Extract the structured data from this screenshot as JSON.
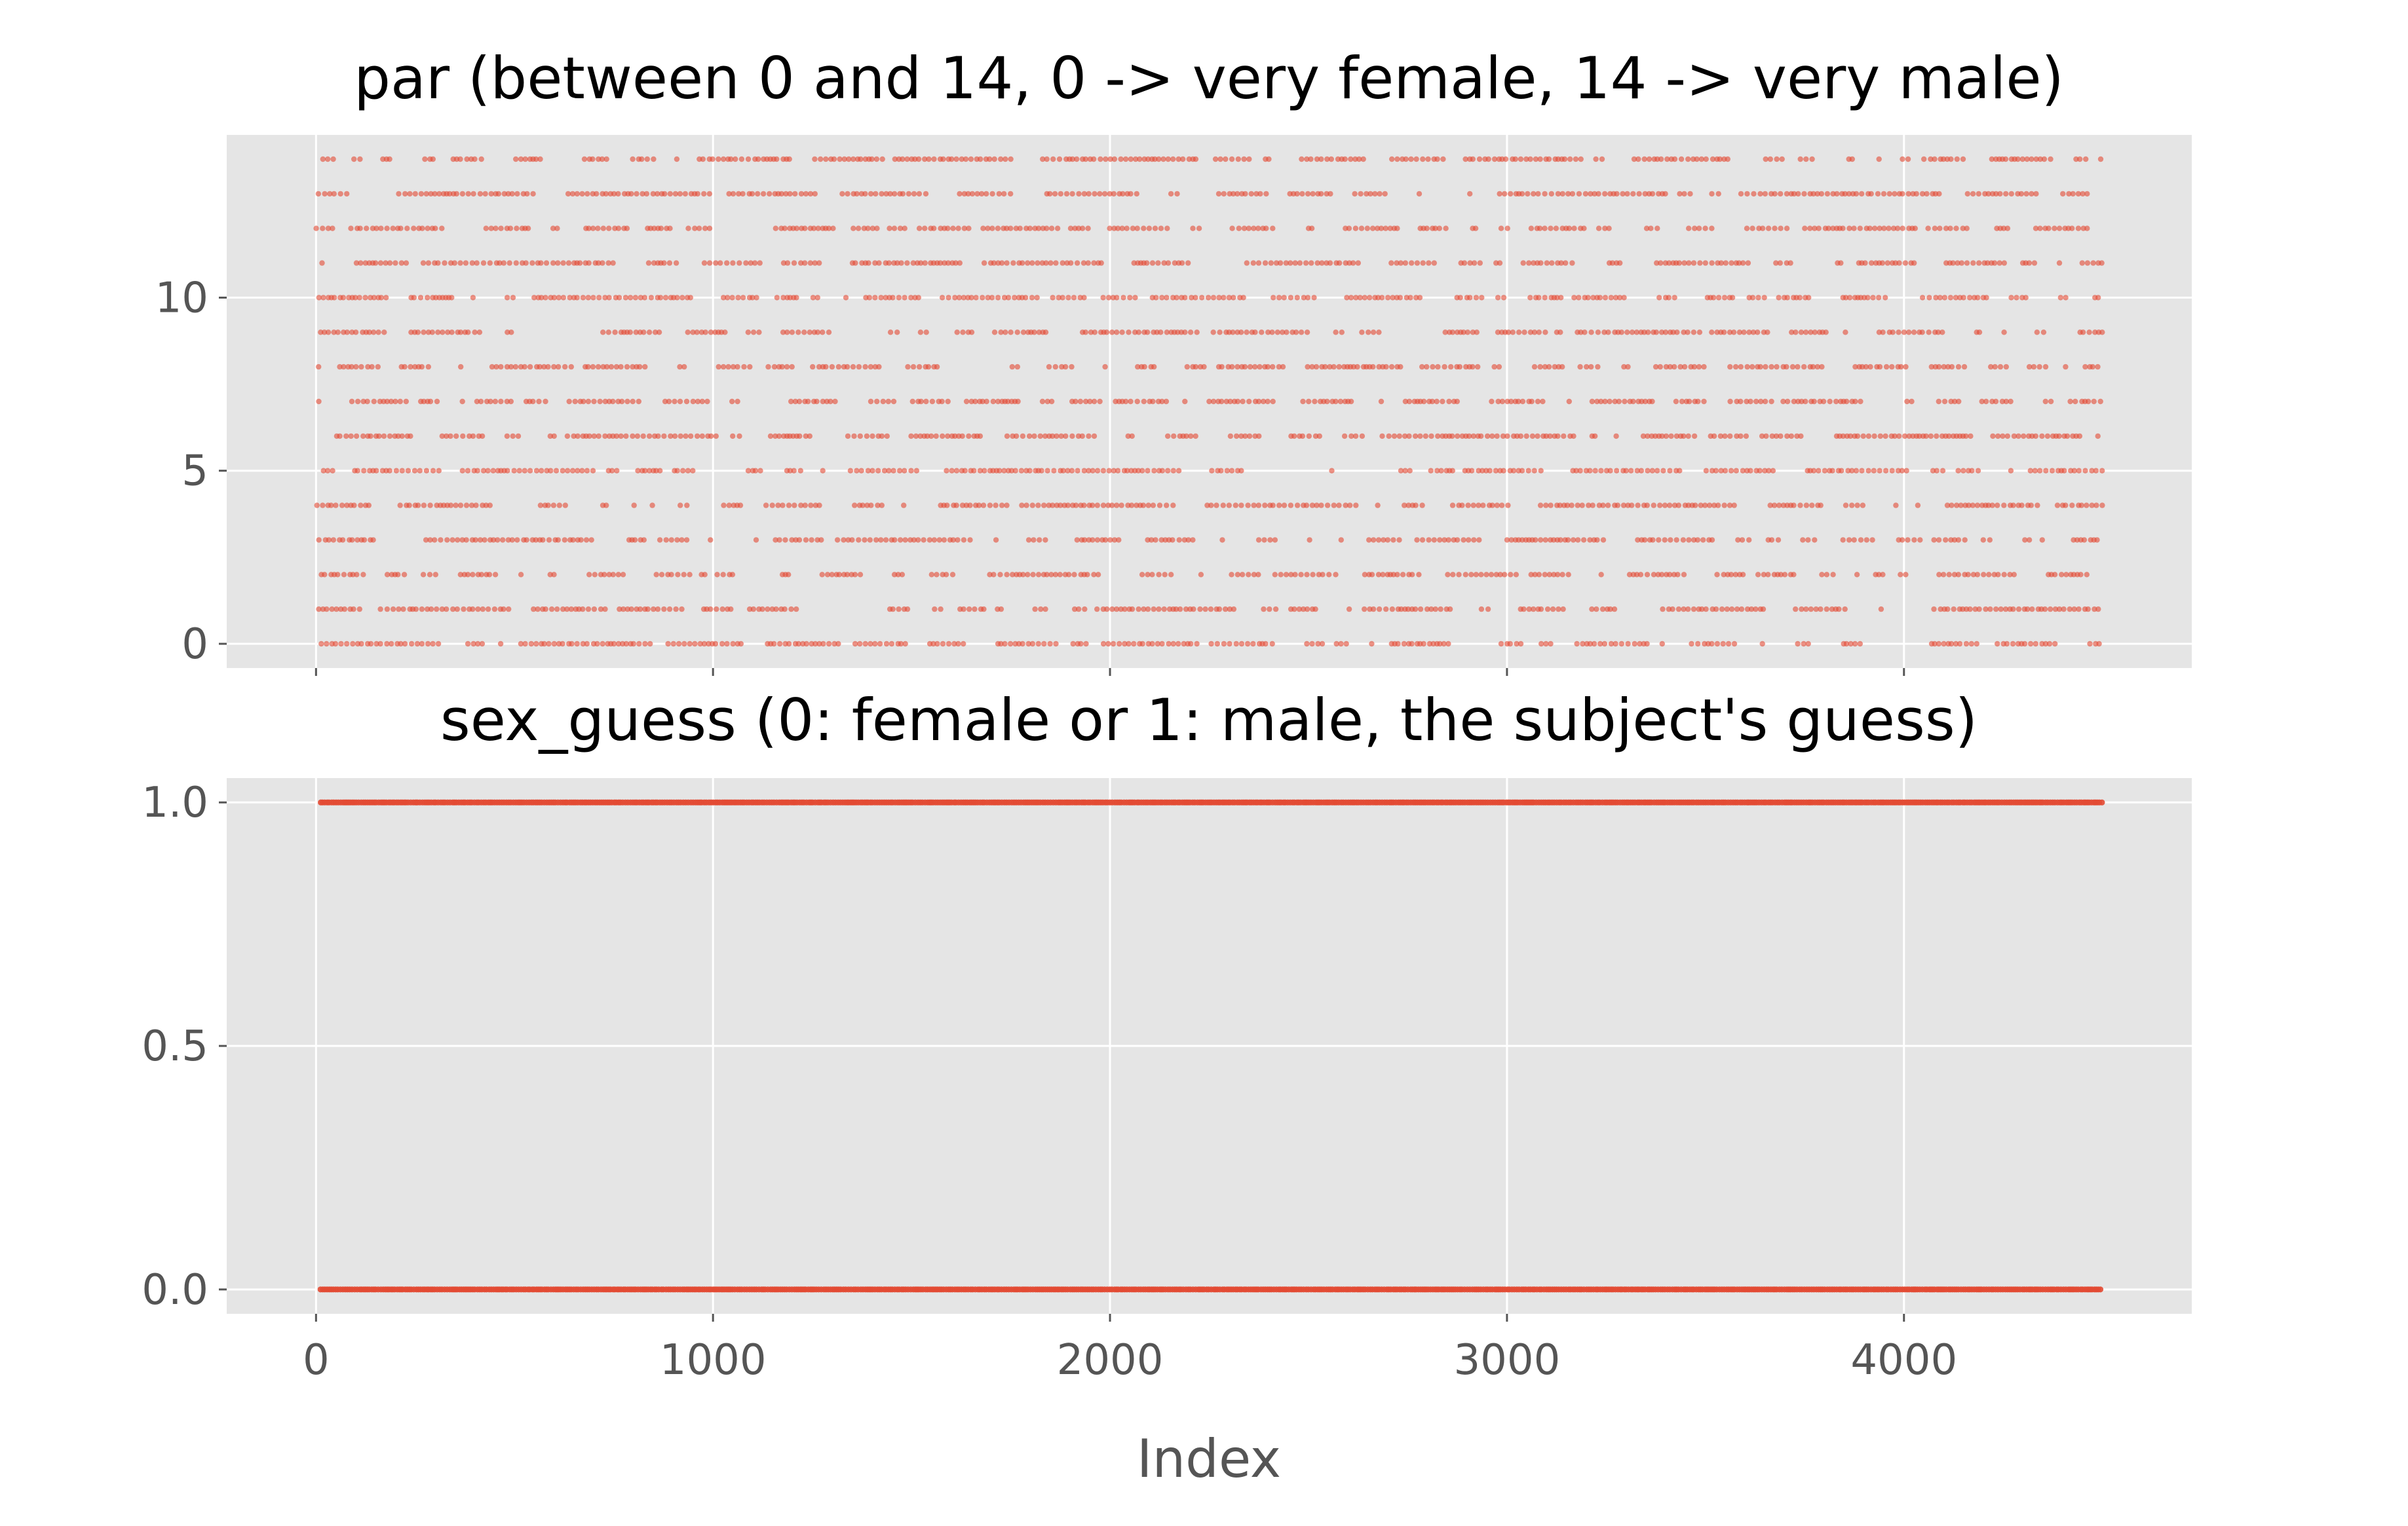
{
  "chart_data": [
    {
      "type": "scatter",
      "title": "par (between 0 and 14, 0 -> very female, 14 -> very male)",
      "xlabel": "",
      "ylabel": "",
      "xlim": [
        -225,
        4725
      ],
      "ylim": [
        -0.7,
        14.7
      ],
      "xticks": [
        0,
        1000,
        2000,
        3000,
        4000
      ],
      "yticks": [
        0,
        5,
        10
      ],
      "ytick_labels": [
        "0",
        "5",
        "10"
      ],
      "grid": true,
      "x_range": [
        0,
        4500
      ],
      "y_levels": [
        0,
        1,
        2,
        3,
        4,
        5,
        6,
        7,
        8,
        9,
        10,
        11,
        12,
        13,
        14
      ],
      "marker_color": "#E24A33",
      "note": "Dense scatter of integer par values (0–14) versus index 0–4500; each level shows many points."
    },
    {
      "type": "scatter",
      "title": "sex_guess (0: female or 1: male, the subject's guess)",
      "xlabel": "Index",
      "ylabel": "",
      "xlim": [
        -225,
        4725
      ],
      "ylim": [
        -0.05,
        1.05
      ],
      "xticks": [
        0,
        1000,
        2000,
        3000,
        4000
      ],
      "xtick_labels": [
        "0",
        "1000",
        "2000",
        "3000",
        "4000"
      ],
      "yticks": [
        0,
        0.5,
        1
      ],
      "ytick_labels": [
        "0.0",
        "0.5",
        "1.0"
      ],
      "grid": true,
      "x_range": [
        0,
        4500
      ],
      "y_levels": [
        0,
        1
      ],
      "marker_color": "#E24A33"
    }
  ],
  "colors": {
    "background": "#E5E5E5",
    "grid": "#FFFFFF",
    "marker": "#E24A33",
    "tick_text": "#555555"
  }
}
